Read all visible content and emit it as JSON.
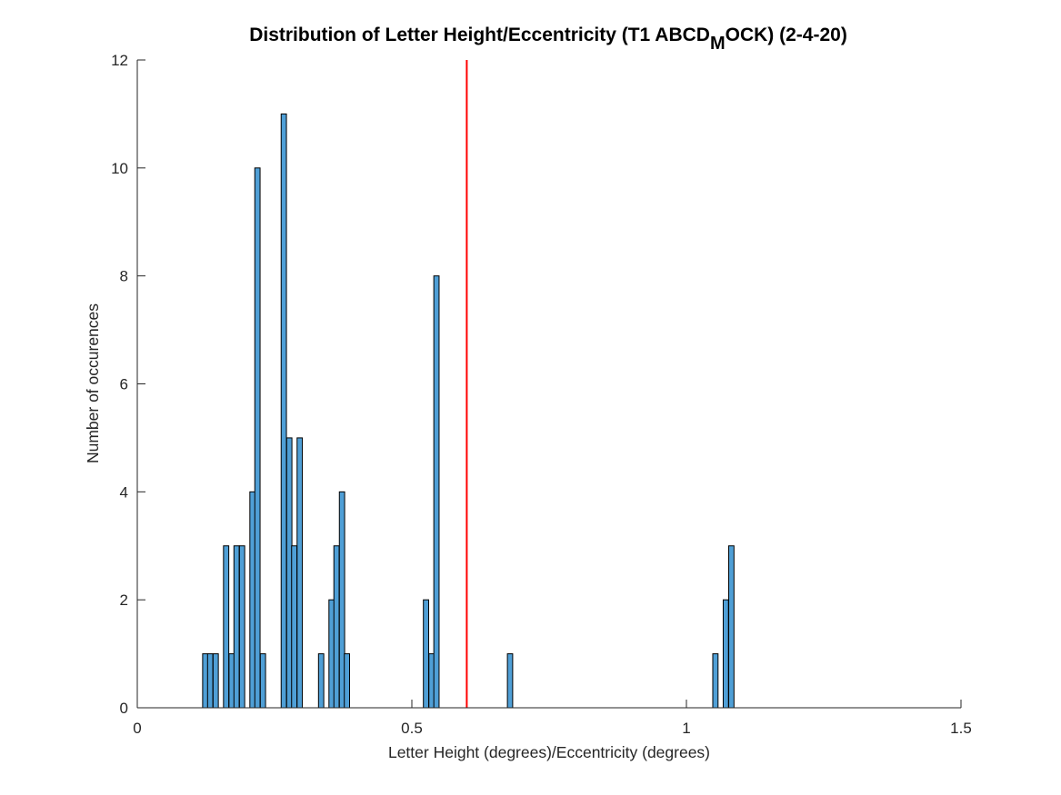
{
  "chart_data": {
    "type": "bar",
    "title": {
      "main": "Distribution of Letter Height/Eccentricity (T1 ABCD",
      "subscript": "M",
      "rest": "OCK) (2-4-20)"
    },
    "xlabel": "Letter Height (degrees)/Eccentricity (degrees)",
    "ylabel": "Number of occurences",
    "xlim": [
      0,
      1.5
    ],
    "ylim": [
      0,
      12
    ],
    "xticks": [
      0,
      0.5,
      1,
      1.5
    ],
    "xtick_labels": [
      "0",
      "0.5",
      "1",
      "1.5"
    ],
    "yticks": [
      0,
      2,
      4,
      6,
      8,
      10,
      12
    ],
    "ytick_labels": [
      "0",
      "2",
      "4",
      "6",
      "8",
      "10",
      "12"
    ],
    "bin_width": 0.0096,
    "bar_color": "#4f9fd6",
    "bar_edge_color": "#000000",
    "reference_line": {
      "x": 0.6,
      "color": "#ff0000"
    },
    "bins": [
      {
        "x": 0.119,
        "count": 1
      },
      {
        "x": 0.128,
        "count": 1
      },
      {
        "x": 0.138,
        "count": 1
      },
      {
        "x": 0.157,
        "count": 3
      },
      {
        "x": 0.167,
        "count": 1
      },
      {
        "x": 0.176,
        "count": 3
      },
      {
        "x": 0.186,
        "count": 3
      },
      {
        "x": 0.205,
        "count": 4
      },
      {
        "x": 0.214,
        "count": 10
      },
      {
        "x": 0.224,
        "count": 1
      },
      {
        "x": 0.262,
        "count": 11
      },
      {
        "x": 0.272,
        "count": 5
      },
      {
        "x": 0.281,
        "count": 3
      },
      {
        "x": 0.291,
        "count": 5
      },
      {
        "x": 0.33,
        "count": 1
      },
      {
        "x": 0.349,
        "count": 2
      },
      {
        "x": 0.358,
        "count": 3
      },
      {
        "x": 0.368,
        "count": 4
      },
      {
        "x": 0.377,
        "count": 1
      },
      {
        "x": 0.521,
        "count": 2
      },
      {
        "x": 0.531,
        "count": 1
      },
      {
        "x": 0.54,
        "count": 8
      },
      {
        "x": 0.674,
        "count": 1
      },
      {
        "x": 1.048,
        "count": 1
      },
      {
        "x": 1.067,
        "count": 2
      },
      {
        "x": 1.077,
        "count": 3
      }
    ],
    "grid": false,
    "legend": "none"
  }
}
